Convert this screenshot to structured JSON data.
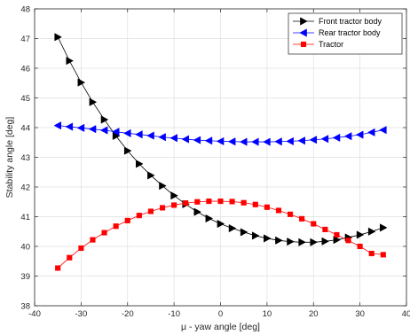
{
  "chart_data": {
    "type": "line",
    "xlabel": "μ - yaw angle [deg]",
    "ylabel": "Stability angle [deg]",
    "xlim": [
      -40,
      40
    ],
    "ylim": [
      38,
      48
    ],
    "xticks": [
      -40,
      -30,
      -20,
      -10,
      0,
      10,
      20,
      30,
      40
    ],
    "yticks": [
      38,
      39,
      40,
      41,
      42,
      43,
      44,
      45,
      46,
      47,
      48
    ],
    "grid": true,
    "legend_position": "top-right",
    "x": [
      -35,
      -32.5,
      -30,
      -27.5,
      -25,
      -22.5,
      -20,
      -17.5,
      -15,
      -12.5,
      -10,
      -7.5,
      -5,
      -2.5,
      0,
      2.5,
      5,
      7.5,
      10,
      12.5,
      15,
      17.5,
      20,
      22.5,
      25,
      27.5,
      30,
      32.5,
      35
    ],
    "series": [
      {
        "name": "Front tractor body",
        "color": "#000000",
        "marker": "triangle-right",
        "values": [
          47.05,
          46.25,
          45.52,
          44.86,
          44.27,
          43.72,
          43.22,
          42.78,
          42.39,
          42.04,
          41.71,
          41.42,
          41.16,
          40.94,
          40.76,
          40.61,
          40.48,
          40.36,
          40.27,
          40.2,
          40.16,
          40.14,
          40.14,
          40.17,
          40.22,
          40.3,
          40.39,
          40.5,
          40.63
        ]
      },
      {
        "name": "Rear tractor body",
        "color": "#0000ff",
        "marker": "triangle-left",
        "values": [
          44.07,
          44.03,
          43.99,
          43.95,
          43.91,
          43.86,
          43.81,
          43.77,
          43.73,
          43.68,
          43.65,
          43.61,
          43.58,
          43.56,
          43.54,
          43.53,
          43.52,
          43.52,
          43.52,
          43.53,
          43.54,
          43.56,
          43.59,
          43.62,
          43.66,
          43.71,
          43.76,
          43.84,
          43.92
        ]
      },
      {
        "name": "Tractor",
        "color": "#ff0000",
        "marker": "square",
        "values": [
          39.27,
          39.62,
          39.94,
          40.22,
          40.46,
          40.68,
          40.87,
          41.04,
          41.18,
          41.3,
          41.39,
          41.46,
          41.5,
          41.52,
          41.52,
          41.51,
          41.47,
          41.41,
          41.32,
          41.21,
          41.08,
          40.93,
          40.76,
          40.57,
          40.39,
          40.2,
          40.0,
          39.76,
          39.72
        ]
      }
    ]
  }
}
